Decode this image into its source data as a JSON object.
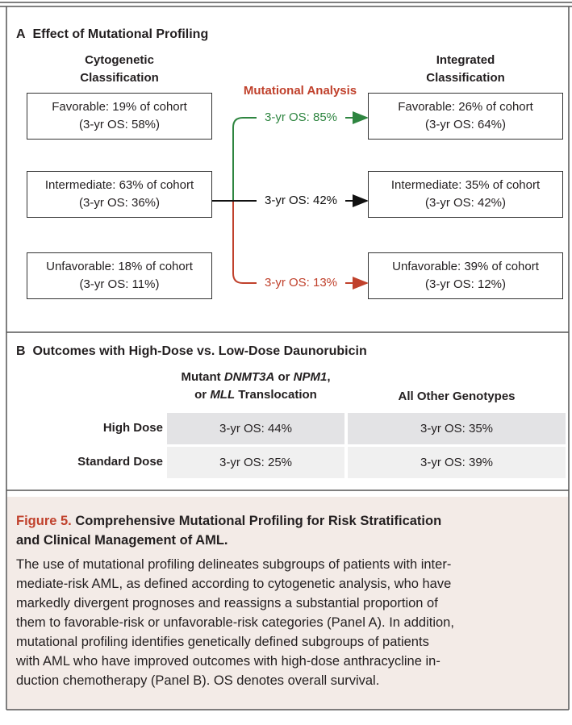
{
  "panel_a": {
    "label": "A",
    "title": "Effect of Mutational Profiling",
    "left_header": [
      "Cytogenetic",
      "Classification"
    ],
    "right_header": [
      "Integrated",
      "Classification"
    ],
    "center_label": "Mutational Analysis",
    "left_boxes": [
      [
        "Favorable: 19% of cohort",
        "(3-yr OS: 58%)"
      ],
      [
        "Intermediate: 63% of cohort",
        "(3-yr OS: 36%)"
      ],
      [
        "Unfavorable: 18% of cohort",
        "(3-yr OS: 11%)"
      ]
    ],
    "arrows": [
      "3-yr OS: 85%",
      "3-yr OS: 42%",
      "3-yr OS: 13%"
    ],
    "right_boxes": [
      [
        "Favorable: 26% of cohort",
        "(3-yr OS: 64%)"
      ],
      [
        "Intermediate: 35% of cohort",
        "(3-yr OS: 42%)"
      ],
      [
        "Unfavorable: 39% of cohort",
        "(3-yr OS: 12%)"
      ]
    ]
  },
  "panel_b": {
    "label": "B",
    "title": "Outcomes with High-Dose vs. Low-Dose Daunorubicin",
    "columns": [
      [
        [
          {
            "text": "Mutant "
          },
          {
            "text": "DNMT3A",
            "italic": true
          },
          {
            "text": " or "
          },
          {
            "text": "NPM1",
            "italic": true
          },
          {
            "text": ","
          }
        ],
        [
          {
            "text": "or "
          },
          {
            "text": "MLL",
            "italic": true
          },
          {
            "text": " Translocation"
          }
        ]
      ],
      [
        [
          {
            "text": "All Other Genotypes"
          }
        ]
      ]
    ],
    "rows": [
      {
        "label": "High Dose",
        "cells": [
          "3-yr OS: 44%",
          "3-yr OS: 35%"
        ]
      },
      {
        "label": "Standard Dose",
        "cells": [
          "3-yr OS: 25%",
          "3-yr OS: 39%"
        ]
      }
    ]
  },
  "caption": {
    "figure_label": "Figure 5.",
    "title_lines": [
      "Comprehensive Mutational Profiling for Risk Stratification",
      "and Clinical Management of AML."
    ],
    "body_lines": [
      "The use of mutational profiling delineates subgroups of patients with inter-",
      "mediate-risk AML, as defined according to cytogenetic analysis, who have",
      "markedly divergent prognoses and reassigns a substantial proportion of",
      "them to favorable-risk or unfavorable-risk categories (Panel A). In addition,",
      "mutational profiling identifies genetically defined subgroups of patients",
      "with AML who have improved outcomes with high-dose anthracycline in-",
      "duction chemotherapy (Panel B). OS denotes overall survival."
    ]
  }
}
